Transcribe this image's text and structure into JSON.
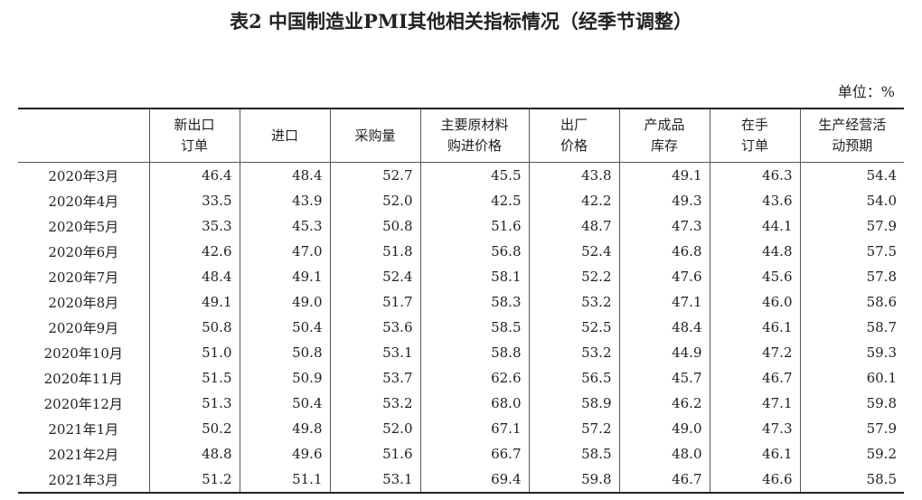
{
  "title": "表2  中国制造业PMI其他相关指标情况（经季节调整）",
  "unit": "单位：%",
  "table": {
    "headers": [
      [
        "新出口",
        "订单"
      ],
      [
        "进口"
      ],
      [
        "采购量"
      ],
      [
        "主要原材料",
        "购进价格"
      ],
      [
        "出厂",
        "价格"
      ],
      [
        "产成品",
        "库存"
      ],
      [
        "在手",
        "订单"
      ],
      [
        "生产经营活",
        "动预期"
      ]
    ],
    "rows": [
      [
        "2020年3月",
        "46.4",
        "48.4",
        "52.7",
        "45.5",
        "43.8",
        "49.1",
        "46.3",
        "54.4"
      ],
      [
        "2020年4月",
        "33.5",
        "43.9",
        "52.0",
        "42.5",
        "42.2",
        "49.3",
        "43.6",
        "54.0"
      ],
      [
        "2020年5月",
        "35.3",
        "45.3",
        "50.8",
        "51.6",
        "48.7",
        "47.3",
        "44.1",
        "57.9"
      ],
      [
        "2020年6月",
        "42.6",
        "47.0",
        "51.8",
        "56.8",
        "52.4",
        "46.8",
        "44.8",
        "57.5"
      ],
      [
        "2020年7月",
        "48.4",
        "49.1",
        "52.4",
        "58.1",
        "52.2",
        "47.6",
        "45.6",
        "57.8"
      ],
      [
        "2020年8月",
        "49.1",
        "49.0",
        "51.7",
        "58.3",
        "53.2",
        "47.1",
        "46.0",
        "58.6"
      ],
      [
        "2020年9月",
        "50.8",
        "50.4",
        "53.6",
        "58.5",
        "52.5",
        "48.4",
        "46.1",
        "58.7"
      ],
      [
        "2020年10月",
        "51.0",
        "50.8",
        "53.1",
        "58.8",
        "53.2",
        "44.9",
        "47.2",
        "59.3"
      ],
      [
        "2020年11月",
        "51.5",
        "50.9",
        "53.7",
        "62.6",
        "56.5",
        "45.7",
        "46.7",
        "60.1"
      ],
      [
        "2020年12月",
        "51.3",
        "50.4",
        "53.2",
        "68.0",
        "58.9",
        "46.2",
        "47.1",
        "59.8"
      ],
      [
        "2021年1月",
        "50.2",
        "49.8",
        "52.0",
        "67.1",
        "57.2",
        "49.0",
        "47.3",
        "57.9"
      ],
      [
        "2021年2月",
        "48.8",
        "49.6",
        "51.6",
        "66.7",
        "58.5",
        "48.0",
        "46.1",
        "59.2"
      ],
      [
        "2021年3月",
        "51.2",
        "51.1",
        "53.1",
        "69.4",
        "59.8",
        "46.7",
        "46.6",
        "58.5"
      ]
    ]
  }
}
